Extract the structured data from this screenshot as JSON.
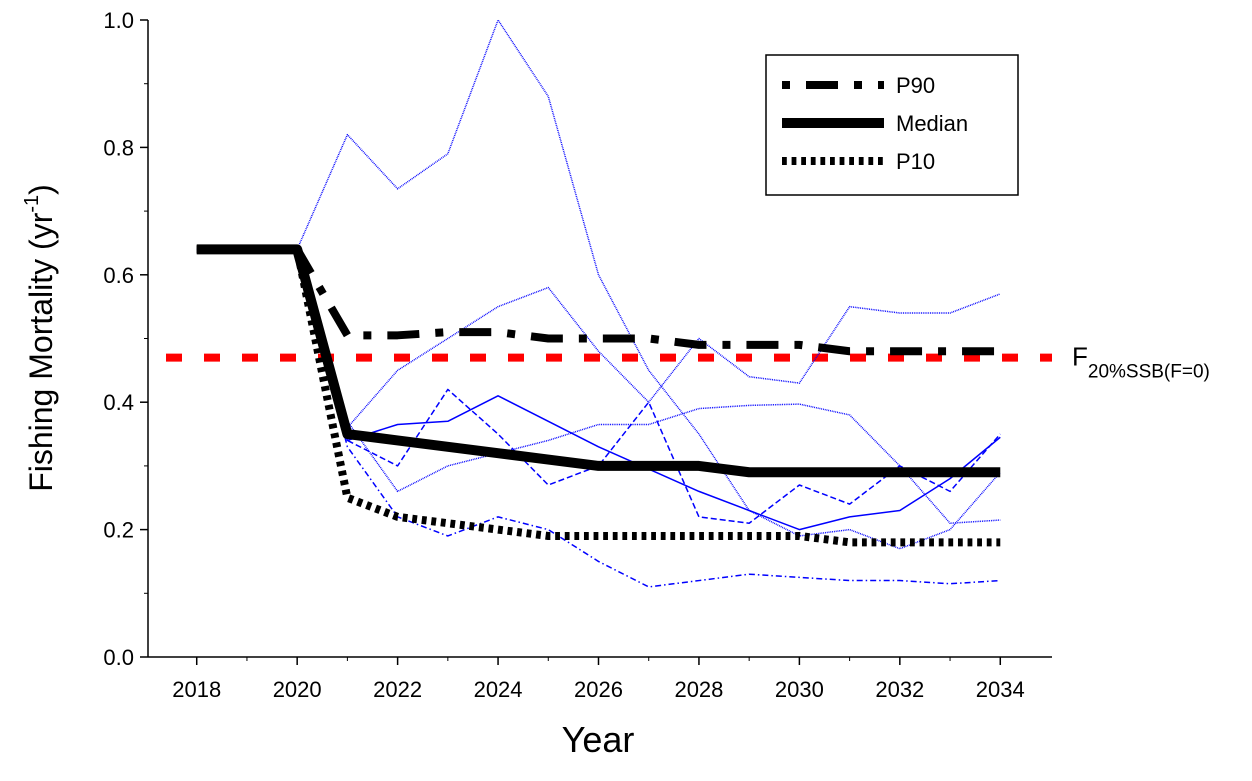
{
  "chart_data": {
    "type": "line",
    "xlabel": "Year",
    "ylabel": {
      "text": "Fishing Mortality (yr",
      "superscript": "-1",
      "suffix": ")"
    },
    "x": [
      2018,
      2019,
      2020,
      2021,
      2022,
      2023,
      2024,
      2025,
      2026,
      2027,
      2028,
      2029,
      2030,
      2031,
      2032,
      2033,
      2034
    ],
    "xlim": [
      2017,
      2035
    ],
    "xticks": [
      2018,
      2020,
      2022,
      2024,
      2026,
      2028,
      2030,
      2032,
      2034
    ],
    "ylim": [
      0,
      1
    ],
    "yticks": [
      {
        "value": 0,
        "label": "0.0"
      },
      0.2,
      0.4,
      0.6,
      0.8,
      {
        "value": 1,
        "label": "1.0"
      }
    ],
    "legend": "top-right",
    "series": [
      {
        "name": "P90",
        "color": "#000000",
        "dash": "dashdot",
        "values": [
          0.64,
          0.64,
          0.64,
          0.505,
          0.505,
          0.51,
          0.51,
          0.5,
          0.5,
          0.5,
          0.49,
          0.49,
          0.49,
          0.48,
          0.48,
          0.48,
          0.48
        ]
      },
      {
        "name": "Median",
        "color": "#000000",
        "dash": "solid",
        "values": [
          0.64,
          0.64,
          0.64,
          0.35,
          0.34,
          0.33,
          0.32,
          0.31,
          0.3,
          0.3,
          0.3,
          0.29,
          0.29,
          0.29,
          0.29,
          0.29,
          0.29
        ]
      },
      {
        "name": "P10",
        "color": "#000000",
        "dash": "dotted",
        "values": [
          0.64,
          0.64,
          0.64,
          0.25,
          0.22,
          0.21,
          0.2,
          0.19,
          0.19,
          0.19,
          0.19,
          0.19,
          0.19,
          0.18,
          0.18,
          0.18,
          0.18
        ]
      }
    ],
    "iterations": [
      {
        "color": "#0000ff",
        "dash": "solid",
        "values": [
          0.64,
          0.64,
          0.64,
          0.34,
          0.365,
          0.37,
          0.41,
          0.37,
          0.33,
          0.295,
          0.26,
          0.23,
          0.2,
          0.22,
          0.23,
          0.28,
          0.345
        ]
      },
      {
        "color": "#0000ff",
        "dash": "dotted",
        "values": [
          0.64,
          0.64,
          0.64,
          0.82,
          0.735,
          0.79,
          1.0,
          0.88,
          0.6,
          0.45,
          0.35,
          0.23,
          0.19,
          0.2,
          0.17,
          0.2,
          0.29
        ]
      },
      {
        "color": "#0000ff",
        "dash": "dotted",
        "values": [
          null,
          null,
          0.64,
          0.37,
          0.26,
          0.3,
          0.32,
          0.34,
          0.365,
          0.365,
          0.39,
          0.395,
          0.397,
          0.38,
          0.3,
          0.21,
          0.215
        ]
      },
      {
        "color": "#0000ff",
        "dash": "dashdot",
        "values": [
          null,
          null,
          0.64,
          0.33,
          0.22,
          0.19,
          0.22,
          0.2,
          0.15,
          0.11,
          0.12,
          0.13,
          0.125,
          0.12,
          0.12,
          0.115,
          0.12
        ]
      },
      {
        "color": "#0000ff",
        "dash": "dashed",
        "values": [
          null,
          null,
          0.64,
          0.34,
          0.3,
          0.42,
          0.35,
          0.27,
          0.3,
          0.4,
          0.22,
          0.21,
          0.27,
          0.24,
          0.3,
          0.26,
          0.35
        ]
      },
      {
        "color": "#0000ff",
        "dash": "dotted",
        "values": [
          null,
          null,
          0.64,
          0.36,
          0.45,
          0.5,
          0.55,
          0.58,
          0.48,
          0.4,
          0.5,
          0.44,
          0.43,
          0.55,
          0.54,
          0.54,
          0.57
        ]
      }
    ],
    "reference": {
      "value": 0.47,
      "color": "#ff0000",
      "text": "F",
      "subscript": "20%SSB(F=0)"
    }
  }
}
